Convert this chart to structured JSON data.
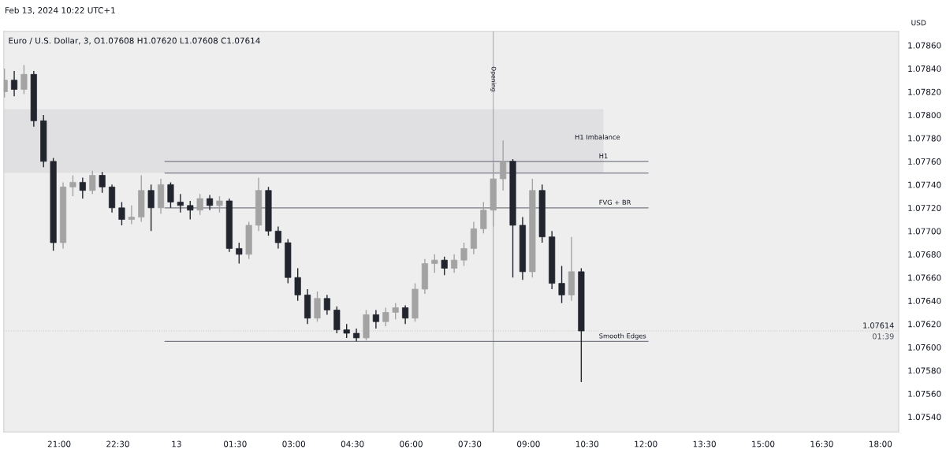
{
  "chart_data": {
    "type": "candlestick",
    "title": "Euro / U.S. Dollar, 3, O1.07608 H1.07620 L1.07608 C1.07614",
    "annotations": [
      "Feb 13, 2024 10:22 UTC+1",
      "USD",
      "01:39"
    ],
    "x": [
      "2024-02-12T19:36",
      "2024-02-12T19:51",
      "2024-02-12T20:06",
      "2024-02-12T20:21",
      "2024-02-12T20:36",
      "2024-02-12T20:51",
      "2024-02-12T21:06",
      "2024-02-12T21:21",
      "2024-02-12T21:36",
      "2024-02-12T21:51",
      "2024-02-12T22:06",
      "2024-02-12T22:21",
      "2024-02-12T22:36",
      "2024-02-12T22:51",
      "2024-02-12T23:06",
      "2024-02-12T23:21",
      "2024-02-12T23:36",
      "2024-02-12T23:51",
      "2024-02-13T00:06",
      "2024-02-13T00:21",
      "2024-02-13T00:36",
      "2024-02-13T00:51",
      "2024-02-13T01:06",
      "2024-02-13T01:21",
      "2024-02-13T01:36",
      "2024-02-13T01:51",
      "2024-02-13T02:06",
      "2024-02-13T02:21",
      "2024-02-13T02:36",
      "2024-02-13T02:51",
      "2024-02-13T03:06",
      "2024-02-13T03:21",
      "2024-02-13T03:36",
      "2024-02-13T03:51",
      "2024-02-13T04:06",
      "2024-02-13T04:21",
      "2024-02-13T04:36",
      "2024-02-13T04:51",
      "2024-02-13T05:06",
      "2024-02-13T05:21",
      "2024-02-13T05:36",
      "2024-02-13T05:51",
      "2024-02-13T06:06",
      "2024-02-13T06:21",
      "2024-02-13T06:36",
      "2024-02-13T06:51",
      "2024-02-13T07:06",
      "2024-02-13T07:21",
      "2024-02-13T07:36",
      "2024-02-13T07:51",
      "2024-02-13T08:06",
      "2024-02-13T08:21",
      "2024-02-13T08:36",
      "2024-02-13T08:51",
      "2024-02-13T09:06",
      "2024-02-13T09:21",
      "2024-02-13T09:36",
      "2024-02-13T09:51",
      "2024-02-13T10:06",
      "2024-02-13T10:21"
    ],
    "ohlc": [
      [
        1.0782,
        1.0784,
        1.07815,
        1.0783
      ],
      [
        1.0783,
        1.07838,
        1.07816,
        1.07822
      ],
      [
        1.07822,
        1.07843,
        1.07818,
        1.07835
      ],
      [
        1.07835,
        1.07838,
        1.0779,
        1.07795
      ],
      [
        1.07795,
        1.078,
        1.07755,
        1.0776
      ],
      [
        1.0776,
        1.07763,
        1.07683,
        1.0769
      ],
      [
        1.0769,
        1.07742,
        1.07685,
        1.07738
      ],
      [
        1.07738,
        1.07748,
        1.0773,
        1.07742
      ],
      [
        1.07742,
        1.07746,
        1.07728,
        1.07735
      ],
      [
        1.07735,
        1.07752,
        1.07732,
        1.07748
      ],
      [
        1.07748,
        1.07751,
        1.07733,
        1.07738
      ],
      [
        1.07738,
        1.0774,
        1.07716,
        1.0772
      ],
      [
        1.0772,
        1.07725,
        1.07705,
        1.0771
      ],
      [
        1.0771,
        1.07722,
        1.07706,
        1.07712
      ],
      [
        1.07712,
        1.07748,
        1.07708,
        1.07735
      ],
      [
        1.07735,
        1.0774,
        1.077,
        1.0772
      ],
      [
        1.0772,
        1.07745,
        1.07715,
        1.0774
      ],
      [
        1.0774,
        1.07742,
        1.0772,
        1.07725
      ],
      [
        1.07725,
        1.07732,
        1.07716,
        1.07722
      ],
      [
        1.07722,
        1.07726,
        1.0771,
        1.07718
      ],
      [
        1.07718,
        1.07732,
        1.07714,
        1.07728
      ],
      [
        1.07728,
        1.07731,
        1.07718,
        1.07722
      ],
      [
        1.07722,
        1.0773,
        1.07716,
        1.07726
      ],
      [
        1.07726,
        1.07728,
        1.07682,
        1.07685
      ],
      [
        1.07685,
        1.0769,
        1.07672,
        1.0768
      ],
      [
        1.0768,
        1.07708,
        1.07676,
        1.07705
      ],
      [
        1.07705,
        1.07746,
        1.077,
        1.07735
      ],
      [
        1.07735,
        1.07738,
        1.07696,
        1.077
      ],
      [
        1.077,
        1.07704,
        1.07685,
        1.0769
      ],
      [
        1.0769,
        1.07693,
        1.07655,
        1.0766
      ],
      [
        1.0766,
        1.07668,
        1.0764,
        1.07645
      ],
      [
        1.07645,
        1.0765,
        1.0762,
        1.07625
      ],
      [
        1.07625,
        1.07648,
        1.07622,
        1.07642
      ],
      [
        1.07642,
        1.07645,
        1.07628,
        1.07632
      ],
      [
        1.07632,
        1.07635,
        1.07612,
        1.07615
      ],
      [
        1.07615,
        1.0762,
        1.07608,
        1.07612
      ],
      [
        1.07612,
        1.07616,
        1.07605,
        1.07608
      ],
      [
        1.07608,
        1.07632,
        1.07606,
        1.07628
      ],
      [
        1.07628,
        1.07632,
        1.07616,
        1.07622
      ],
      [
        1.07622,
        1.07634,
        1.07618,
        1.0763
      ],
      [
        1.0763,
        1.07638,
        1.07624,
        1.07634
      ],
      [
        1.07634,
        1.07636,
        1.0762,
        1.07625
      ],
      [
        1.07625,
        1.07655,
        1.07622,
        1.0765
      ],
      [
        1.0765,
        1.07676,
        1.07646,
        1.07672
      ],
      [
        1.07672,
        1.0768,
        1.07664,
        1.07675
      ],
      [
        1.07675,
        1.07678,
        1.07662,
        1.07668
      ],
      [
        1.07668,
        1.0768,
        1.07664,
        1.07675
      ],
      [
        1.07675,
        1.0769,
        1.0767,
        1.07685
      ],
      [
        1.07685,
        1.07708,
        1.0768,
        1.07702
      ],
      [
        1.07702,
        1.07725,
        1.07698,
        1.07718
      ],
      [
        1.07718,
        1.07758,
        1.07704,
        1.07745
      ],
      [
        1.07745,
        1.07778,
        1.07735,
        1.0776
      ],
      [
        1.0776,
        1.07762,
        1.0766,
        1.07705
      ],
      [
        1.07705,
        1.07712,
        1.07658,
        1.07665
      ],
      [
        1.07665,
        1.07745,
        1.0766,
        1.07735
      ],
      [
        1.07735,
        1.0774,
        1.0769,
        1.07695
      ],
      [
        1.07695,
        1.077,
        1.0765,
        1.07655
      ],
      [
        1.07655,
        1.0767,
        1.07638,
        1.07645
      ],
      [
        1.07645,
        1.07695,
        1.0764,
        1.07665
      ],
      [
        1.07665,
        1.07668,
        1.0757,
        1.07614
      ]
    ],
    "colors": [
      "#a3a3a3",
      "#22252e",
      "#a3a3a3",
      "#22252e",
      "#22252e",
      "#22252e",
      "#a3a3a3",
      "#a3a3a3",
      "#22252e",
      "#a3a3a3",
      "#22252e",
      "#22252e",
      "#22252e",
      "#a3a3a3",
      "#a3a3a3",
      "#22252e",
      "#a3a3a3",
      "#22252e",
      "#22252e",
      "#22252e",
      "#a3a3a3",
      "#22252e",
      "#a3a3a3",
      "#22252e",
      "#22252e",
      "#a3a3a3",
      "#a3a3a3",
      "#22252e",
      "#22252e",
      "#22252e",
      "#22252e",
      "#22252e",
      "#a3a3a3",
      "#22252e",
      "#22252e",
      "#22252e",
      "#22252e",
      "#a3a3a3",
      "#22252e",
      "#a3a3a3",
      "#a3a3a3",
      "#22252e",
      "#a3a3a3",
      "#a3a3a3",
      "#a3a3a3",
      "#22252e",
      "#a3a3a3",
      "#a3a3a3",
      "#a3a3a3",
      "#a3a3a3",
      "#a3a3a3",
      "#a3a3a3",
      "#22252e",
      "#22252e",
      "#a3a3a3",
      "#22252e",
      "#22252e",
      "#22252e",
      "#a3a3a3",
      "#22252e"
    ],
    "xlim": [
      "2024-02-12T19:35",
      "2024-02-13T18:28"
    ],
    "xticks": [
      {
        "value": "2024-02-12T21:00",
        "label": "21:00"
      },
      {
        "value": "2024-02-12T22:30",
        "label": "22:30"
      },
      {
        "value": "2024-02-13T00:00",
        "label": "13"
      },
      {
        "value": "2024-02-13T01:30",
        "label": "01:30"
      },
      {
        "value": "2024-02-13T03:00",
        "label": "03:00"
      },
      {
        "value": "2024-02-13T04:30",
        "label": "04:30"
      },
      {
        "value": "2024-02-13T06:00",
        "label": "06:00"
      },
      {
        "value": "2024-02-13T07:30",
        "label": "07:30"
      },
      {
        "value": "2024-02-13T09:00",
        "label": "09:00"
      },
      {
        "value": "2024-02-13T10:30",
        "label": "10:30"
      },
      {
        "value": "2024-02-13T12:00",
        "label": "12:00"
      },
      {
        "value": "2024-02-13T13:30",
        "label": "13:30"
      },
      {
        "value": "2024-02-13T15:00",
        "label": "15:00"
      },
      {
        "value": "2024-02-13T16:30",
        "label": "16:30"
      },
      {
        "value": "2024-02-13T18:00",
        "label": "18:00"
      }
    ],
    "ylim": [
      1.07527,
      1.07872
    ],
    "yticks": [
      {
        "value": 1.0754,
        "label": "1.07540"
      },
      {
        "value": 1.0756,
        "label": "1.07560"
      },
      {
        "value": 1.0758,
        "label": "1.07580"
      },
      {
        "value": 1.076,
        "label": "1.07600"
      },
      {
        "value": 1.0762,
        "label": "1.07620"
      },
      {
        "value": 1.0764,
        "label": "1.07640"
      },
      {
        "value": 1.0766,
        "label": "1.07660"
      },
      {
        "value": 1.0768,
        "label": "1.07680"
      },
      {
        "value": 1.077,
        "label": "1.07700"
      },
      {
        "value": 1.0772,
        "label": "1.07720"
      },
      {
        "value": 1.0774,
        "label": "1.07740"
      },
      {
        "value": 1.0776,
        "label": "1.07760"
      },
      {
        "value": 1.0778,
        "label": "1.07780"
      },
      {
        "value": 1.078,
        "label": "1.07800"
      },
      {
        "value": 1.0782,
        "label": "1.07820"
      },
      {
        "value": 1.0784,
        "label": "1.07840"
      },
      {
        "value": 1.0786,
        "label": "1.07860"
      }
    ],
    "bands": [
      {
        "axis": "y",
        "from": 1.0775,
        "to": 1.07805,
        "label": "H1 Imbalance",
        "color": "#e0e0e2"
      }
    ],
    "ref_lines": [
      {
        "axis": "y",
        "value": 1.0776,
        "label": "H1",
        "color": "#787b86"
      },
      {
        "axis": "y",
        "value": 1.0775,
        "label": null,
        "color": "#787b86"
      },
      {
        "axis": "y",
        "value": 1.0772,
        "label": "FVG + BR",
        "color": "#787b86"
      },
      {
        "axis": "y",
        "value": 1.07605,
        "label": "Smooth Edges",
        "color": "#787b86"
      },
      {
        "axis": "y",
        "value": 1.07614,
        "label": "1.07614",
        "color": "#c8c8c8",
        "line_style": "dotted"
      },
      {
        "axis": "x",
        "value": "2024-02-13T08:06",
        "label": "Opening",
        "color": "#787b86"
      }
    ],
    "grid": false
  }
}
